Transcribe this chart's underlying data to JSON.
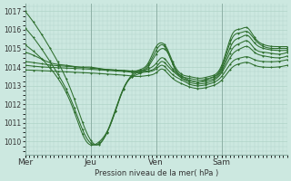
{
  "xlabel": "Pression niveau de la mer( hPa )",
  "ylim": [
    1009.3,
    1017.4
  ],
  "yticks": [
    1010,
    1011,
    1012,
    1013,
    1014,
    1015,
    1016,
    1017
  ],
  "bg_color": "#cce8e0",
  "grid_color": "#b0d4c8",
  "line_color": "#2d6e2d",
  "marker_color": "#2d6e2d",
  "xtick_labels": [
    "Mer",
    "Jeu",
    "Ven",
    "Sam"
  ],
  "xtick_positions": [
    0,
    48,
    96,
    144
  ],
  "xlim": [
    0,
    192
  ]
}
